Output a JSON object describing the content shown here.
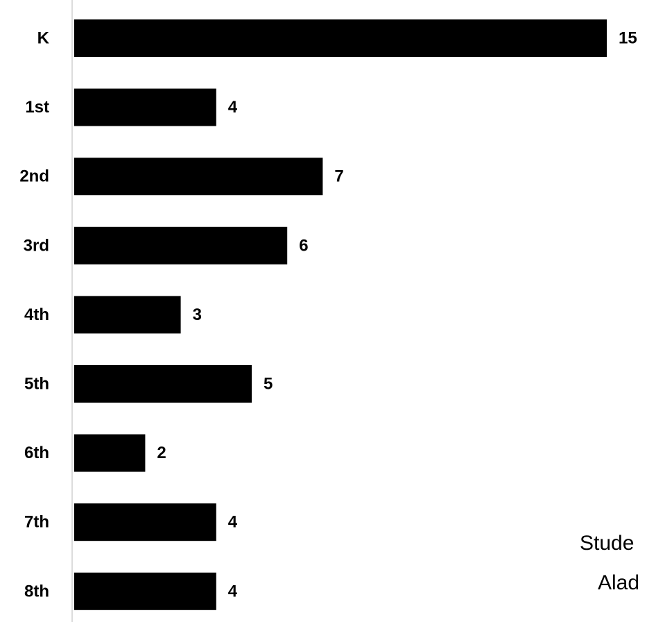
{
  "chart_data": {
    "type": "bar",
    "orientation": "horizontal",
    "categories": [
      "K",
      "1st",
      "2nd",
      "3rd",
      "4th",
      "5th",
      "6th",
      "7th",
      "8th"
    ],
    "values": [
      15,
      4,
      7,
      6,
      3,
      5,
      2,
      4,
      4
    ],
    "title": "",
    "xlabel": "",
    "ylabel": "",
    "grid": false,
    "data_labels": true,
    "bar_color": "#000000"
  },
  "annotations": {
    "line1": "Stude",
    "line2": "Alad"
  }
}
